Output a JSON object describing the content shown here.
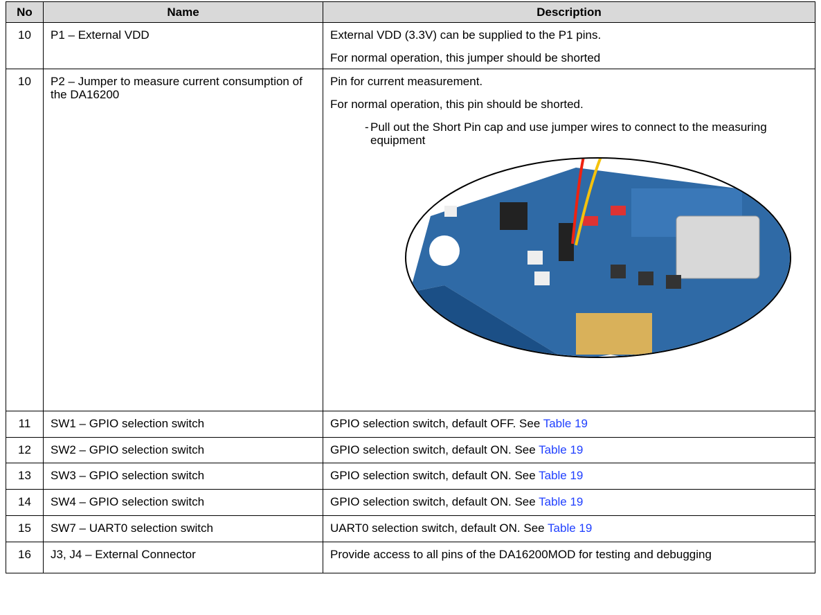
{
  "table": {
    "header": [
      "No",
      "Name",
      "Description"
    ],
    "rows": [
      {
        "no": "10",
        "name": "P1 – External VDD",
        "description": [
          "External VDD (3.3V) can be supplied to the P1 pins.",
          "For normal operation, this jumper should be shorted"
        ]
      },
      {
        "no": "10",
        "name": "P2 – Jumper to measure current consumption of the DA16200",
        "description": [
          "Pin for current measurement.",
          "For normal operation, this pin should be shorted."
        ],
        "bullet": {
          "marker": "-",
          "text": "Pull out the Short Pin cap and use jumper wires to connect to the measuring equipment"
        }
      },
      {
        "no": "11",
        "name": "SW1 – GPIO selection switch",
        "description": "GPIO selection switch, default OFF. See ",
        "link": "Table 19"
      },
      {
        "no": "12",
        "name": "SW2 – GPIO selection switch",
        "description": "GPIO selection switch, default ON. See ",
        "link": "Table 19"
      },
      {
        "no": "13",
        "name": "SW3 – GPIO selection switch",
        "description": "GPIO selection switch, default ON. See ",
        "link": "Table 19"
      },
      {
        "no": "14",
        "name": "SW4 – GPIO selection switch",
        "description": "GPIO selection switch, default ON. See ",
        "link": "Table 19"
      },
      {
        "no": "15",
        "name": "SW7 – UART0 selection switch",
        "description": "UART0 selection switch, default ON. See ",
        "link": "Table 19"
      },
      {
        "no": "16",
        "name": "J3, J4 – External Connector",
        "description": "Provide access to all pins of the DA16200MOD for testing and debugging"
      }
    ]
  }
}
